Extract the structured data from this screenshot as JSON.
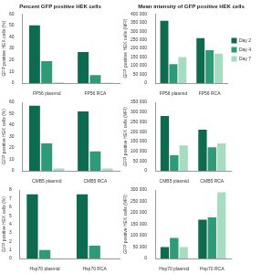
{
  "chart_data": [
    {
      "type": "bar",
      "title": "Percent GFP positive HEK cells",
      "y_label": "GFP positive HEK cells (%)",
      "categories": [
        "FP56 plasmid",
        "FP56 RCA"
      ],
      "series": [
        {
          "name": "Day 2",
          "color": "#0f6b50",
          "values": [
            50,
            27
          ]
        },
        {
          "name": "Day 4",
          "color": "#2e9a78",
          "values": [
            19,
            7
          ]
        },
        {
          "name": "Day 7",
          "color": "#a8dcc0",
          "values": [
            0.5,
            0.3
          ]
        }
      ],
      "ylim": [
        0,
        60
      ],
      "yticks": [
        0,
        10,
        20,
        30,
        40,
        50,
        60
      ],
      "grid": false
    },
    {
      "type": "bar",
      "title": "Mean intensity of GFP positive HEK cells",
      "y_label": "GFP positive HEK cells (MFI)",
      "categories": [
        "FP56 plasmid",
        "FP56 RCA"
      ],
      "series": [
        {
          "name": "Day 2",
          "color": "#0f6b50",
          "values": [
            360000,
            260000
          ]
        },
        {
          "name": "Day 4",
          "color": "#2e9a78",
          "values": [
            110000,
            190000
          ]
        },
        {
          "name": "Day 7",
          "color": "#a8dcc0",
          "values": [
            150000,
            170000
          ]
        }
      ],
      "ylim": [
        0,
        400000
      ],
      "yticks": [
        0,
        {
          "value": 50000,
          "label": "50 000"
        },
        {
          "value": 100000,
          "label": "100 000"
        },
        {
          "value": 150000,
          "label": "150 000"
        },
        {
          "value": 200000,
          "label": "200 000"
        },
        {
          "value": 250000,
          "label": "250 000"
        },
        {
          "value": 300000,
          "label": "300 000"
        },
        {
          "value": 350000,
          "label": "350 000"
        },
        {
          "value": 400000,
          "label": "400 000"
        }
      ],
      "grid": false,
      "legend": "right"
    },
    {
      "type": "bar",
      "y_label": "GFP positive HEK cells (%)",
      "categories": [
        "CMB5 plasmid",
        "CMB5 RCA"
      ],
      "series": [
        {
          "name": "Day 2",
          "color": "#0f6b50",
          "values": [
            57,
            52
          ]
        },
        {
          "name": "Day 4",
          "color": "#2e9a78",
          "values": [
            24,
            17
          ]
        },
        {
          "name": "Day 7",
          "color": "#a8dcc0",
          "values": [
            2,
            2
          ]
        }
      ],
      "ylim": [
        0,
        60
      ],
      "yticks": [
        0,
        10,
        20,
        30,
        40,
        50,
        60
      ],
      "grid": false
    },
    {
      "type": "bar",
      "y_label": "GFP positive HEK cells (MFI)",
      "categories": [
        "CMB5 plasmid",
        "CMB5 RCA"
      ],
      "series": [
        {
          "name": "Day 2",
          "color": "#0f6b50",
          "values": [
            280000,
            210000
          ]
        },
        {
          "name": "Day 4",
          "color": "#2e9a78",
          "values": [
            80000,
            120000
          ]
        },
        {
          "name": "Day 7",
          "color": "#a8dcc0",
          "values": [
            130000,
            140000
          ]
        }
      ],
      "ylim": [
        0,
        350000
      ],
      "yticks": [
        0,
        {
          "value": 50000,
          "label": "50 000"
        },
        {
          "value": 100000,
          "label": "100 000"
        },
        {
          "value": 150000,
          "label": "150 000"
        },
        {
          "value": 200000,
          "label": "200 000"
        },
        {
          "value": 250000,
          "label": "250 000"
        },
        {
          "value": 300000,
          "label": "300 000"
        },
        {
          "value": 350000,
          "label": "350 000"
        }
      ],
      "grid": false
    },
    {
      "type": "bar",
      "y_label": "GFP positive HEK cells (%)",
      "categories": [
        "Hsp70 plasmid",
        "Hsp70 RCA"
      ],
      "series": [
        {
          "name": "Day 2",
          "color": "#0f6b50",
          "values": [
            7.5,
            7.5
          ]
        },
        {
          "name": "Day 4",
          "color": "#2e9a78",
          "values": [
            1,
            1.5
          ]
        },
        {
          "name": "Day 7",
          "color": "#a8dcc0",
          "values": [
            0,
            0
          ]
        }
      ],
      "ylim": [
        0,
        8
      ],
      "yticks": [
        0,
        1,
        2,
        3,
        4,
        5,
        6,
        7,
        8
      ],
      "grid": false
    },
    {
      "type": "bar",
      "y_label": "GFP positive HEK cells (MFI)",
      "categories": [
        "Hsp70 plasmid",
        "Hsp70 RCA"
      ],
      "series": [
        {
          "name": "Day 2",
          "color": "#0f6b50",
          "values": [
            50000,
            170000
          ]
        },
        {
          "name": "Day 4",
          "color": "#2e9a78",
          "values": [
            90000,
            180000
          ]
        },
        {
          "name": "Day 7",
          "color": "#a8dcc0",
          "values": [
            50000,
            290000
          ]
        }
      ],
      "ylim": [
        0,
        300000
      ],
      "yticks": [
        0,
        {
          "value": 50000,
          "label": "50 000"
        },
        {
          "value": 100000,
          "label": "100 000"
        },
        {
          "value": 150000,
          "label": "150 000"
        },
        {
          "value": 200000,
          "label": "200 000"
        },
        {
          "value": 250000,
          "label": "250 000"
        },
        {
          "value": 300000,
          "label": "300 000"
        }
      ],
      "grid": false
    }
  ]
}
